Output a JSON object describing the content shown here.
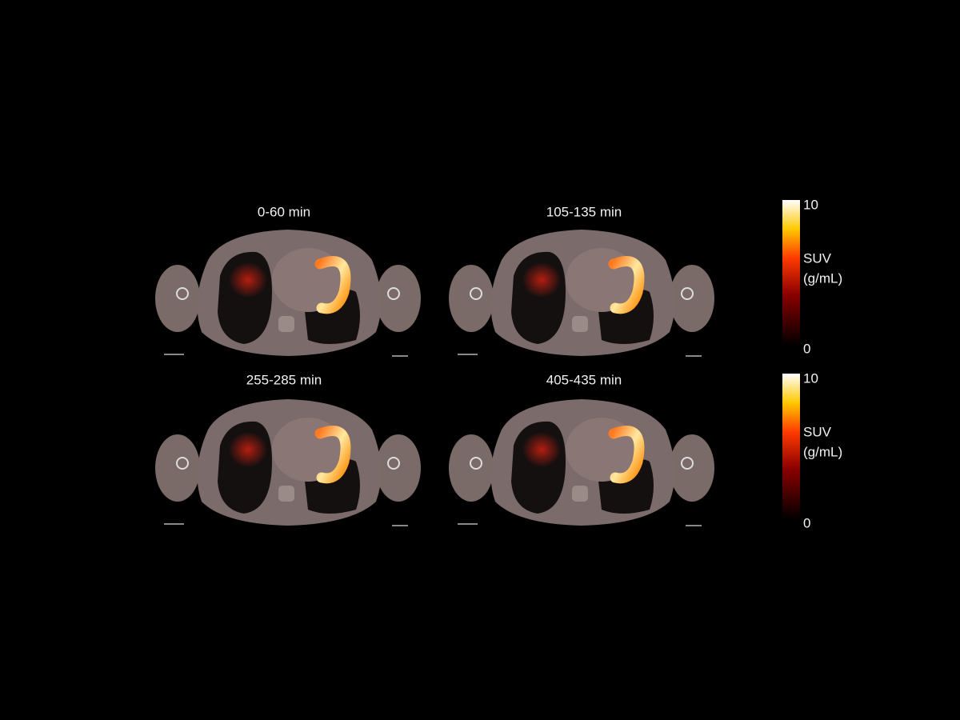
{
  "panels": [
    {
      "title": "0-60 min"
    },
    {
      "title": "105-135 min"
    },
    {
      "title": "255-285 min"
    },
    {
      "title": "405-435 min"
    }
  ],
  "colorbars": [
    {
      "max": 10,
      "label": [
        "SUV",
        "(g/mL)"
      ],
      "min": 0
    },
    {
      "max": 10,
      "label": [
        "SUV",
        "(g/mL)"
      ],
      "min": 0
    }
  ]
}
